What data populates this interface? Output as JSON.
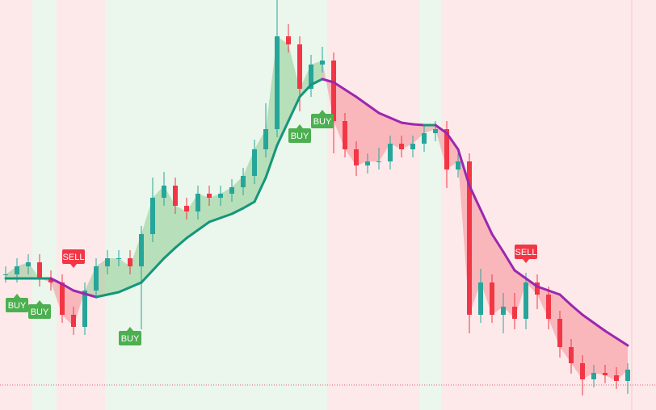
{
  "chart_data": {
    "type": "candlestick",
    "ylim": [
      0,
      508
    ],
    "candles": {
      "up_color": "#26a69a",
      "down_color": "#f23645",
      "close": [
        168,
        178,
        183,
        163,
        158,
        118,
        103,
        148,
        178,
        188,
        188,
        178,
        218,
        263,
        278,
        253,
        246,
        268,
        263,
        268,
        276,
        290,
        323,
        348,
        463,
        453,
        398,
        428,
        433,
        358,
        323,
        303,
        308,
        308,
        330,
        323,
        330,
        343,
        348,
        298,
        308,
        118,
        158,
        118,
        128,
        113,
        158,
        143,
        113,
        78,
        58,
        38,
        46,
        43,
        36,
        50
      ],
      "high": [
        178,
        188,
        193,
        193,
        173,
        168,
        128,
        158,
        188,
        198,
        198,
        198,
        228,
        288,
        295,
        288,
        263,
        278,
        278,
        278,
        286,
        300,
        335,
        380,
        508,
        478,
        463,
        440,
        450,
        443,
        368,
        333,
        318,
        325,
        340,
        340,
        340,
        353,
        358,
        358,
        318,
        318,
        175,
        168,
        145,
        145,
        170,
        168,
        153,
        123,
        88,
        68,
        56,
        56,
        53,
        58
      ],
      "low": [
        158,
        158,
        168,
        153,
        148,
        108,
        93,
        93,
        138,
        168,
        178,
        168,
        100,
        208,
        253,
        243,
        236,
        236,
        253,
        253,
        258,
        266,
        280,
        313,
        338,
        443,
        370,
        388,
        418,
        318,
        313,
        290,
        293,
        298,
        298,
        313,
        313,
        320,
        333,
        275,
        288,
        95,
        108,
        108,
        95,
        100,
        100,
        125,
        100,
        65,
        45,
        18,
        28,
        33,
        26,
        20
      ]
    },
    "ma": {
      "up_color": "#14967a",
      "down_color": "#9c27b0",
      "values": [
        163,
        163,
        163,
        163,
        163,
        156,
        148,
        144,
        140,
        143,
        146,
        152,
        158,
        173,
        188,
        201,
        213,
        223,
        233,
        238,
        243,
        250,
        258,
        288,
        328,
        358,
        388,
        403,
        410,
        406,
        397,
        388,
        378,
        368,
        362,
        356,
        354,
        353,
        353,
        343,
        323,
        278,
        248,
        218,
        196,
        173,
        163,
        153,
        148,
        143,
        130,
        118,
        108,
        98,
        89,
        80
      ]
    },
    "fill_colors": {
      "above": "rgba(76,175,80,0.32)",
      "below": "rgba(242,54,69,0.28)"
    },
    "signal_colors": {
      "BUY": "#4caf50",
      "SELL": "#f23645"
    },
    "signals": [
      {
        "label": "BUY",
        "index": 1,
        "value": 144
      },
      {
        "label": "BUY",
        "index": 3,
        "value": 136
      },
      {
        "label": "SELL",
        "index": 6,
        "value": 176
      },
      {
        "label": "BUY",
        "index": 11,
        "value": 103
      },
      {
        "label": "BUY",
        "index": 26,
        "value": 354
      },
      {
        "label": "BUY",
        "index": 28,
        "value": 372
      },
      {
        "label": "SELL",
        "index": 46,
        "value": 182
      }
    ],
    "price_line": 31
  }
}
